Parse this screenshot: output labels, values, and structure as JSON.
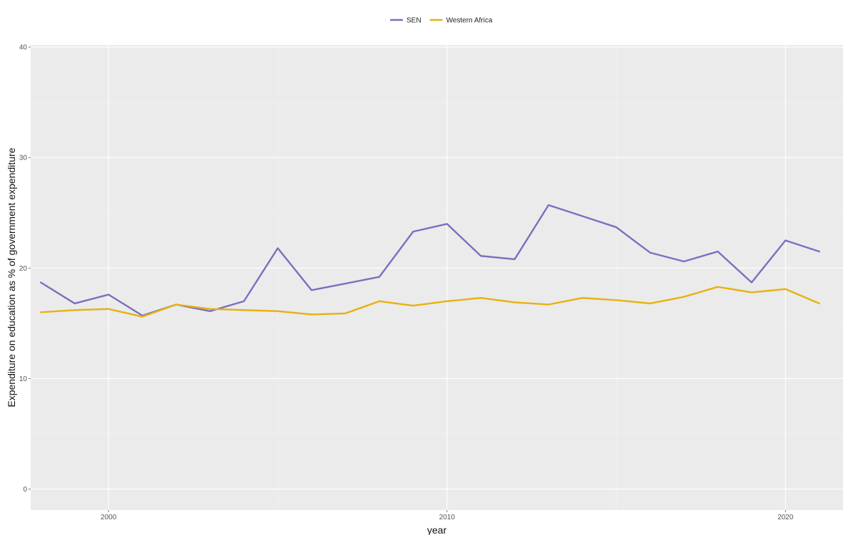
{
  "chart_data": {
    "type": "line",
    "title": "",
    "xlabel": "year",
    "ylabel": "Expenditure on education as % of government expenditure",
    "x": [
      1998,
      1999,
      2000,
      2001,
      2002,
      2003,
      2004,
      2005,
      2006,
      2007,
      2008,
      2009,
      2010,
      2011,
      2012,
      2013,
      2014,
      2015,
      2016,
      2017,
      2018,
      2019,
      2020,
      2021
    ],
    "series": [
      {
        "name": "SEN",
        "color": "#7b6fc0",
        "values": [
          18.7,
          16.8,
          17.6,
          15.7,
          16.7,
          16.1,
          17.0,
          21.8,
          18.0,
          18.6,
          19.2,
          23.3,
          24.0,
          21.1,
          20.8,
          25.7,
          24.7,
          23.7,
          21.4,
          20.6,
          21.5,
          18.7,
          22.5,
          21.5
        ]
      },
      {
        "name": "Western Africa",
        "color": "#e8b10e",
        "values": [
          16.0,
          16.2,
          16.3,
          15.6,
          16.7,
          16.3,
          16.2,
          16.1,
          15.8,
          15.9,
          17.0,
          16.6,
          17.0,
          17.3,
          16.9,
          16.7,
          17.3,
          17.1,
          16.8,
          17.4,
          18.3,
          17.8,
          18.1,
          16.8
        ]
      }
    ],
    "xlim": [
      1997.7,
      2021.7
    ],
    "ylim": [
      -1.9,
      40.2
    ],
    "x_ticks": [
      2000,
      2010,
      2020
    ],
    "x_tick_labels": [
      "2000",
      "2010",
      "2020"
    ],
    "y_ticks": [
      0,
      10,
      20,
      30,
      40
    ],
    "y_tick_labels": [
      "0",
      "10",
      "20",
      "30",
      "40"
    ],
    "grid": true,
    "legend_position": "top"
  }
}
